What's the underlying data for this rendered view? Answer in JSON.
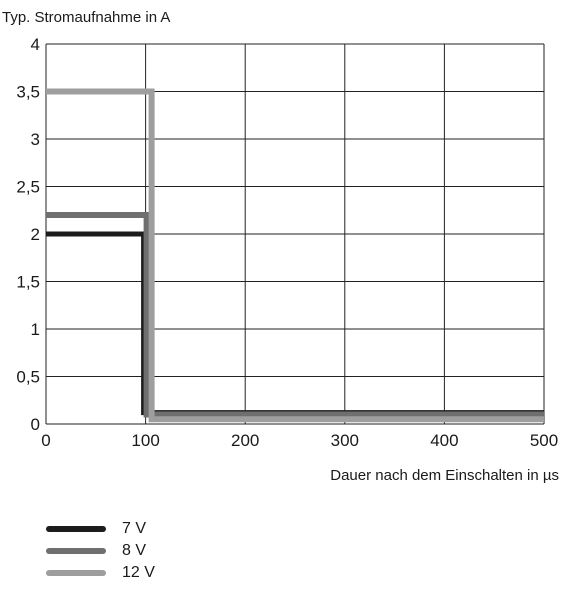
{
  "chart_data": {
    "type": "line",
    "ylabel": "Typ. Stromaufnahme in A",
    "xlabel": "Dauer nach dem Einschalten in µs",
    "xlim": [
      0,
      500
    ],
    "ylim": [
      0,
      4
    ],
    "x_ticks": [
      0,
      100,
      200,
      300,
      400,
      500
    ],
    "y_ticks": [
      0,
      0.5,
      1,
      1.5,
      2,
      2.5,
      3,
      3.5,
      4
    ],
    "x_tick_labels": [
      "0",
      "100",
      "200",
      "300",
      "400",
      "500"
    ],
    "y_tick_labels": [
      "0",
      "0,5",
      "1",
      "1,5",
      "2",
      "2,5",
      "3",
      "3,5",
      "4"
    ],
    "grid": true,
    "legend_position": "bottom-left",
    "series": [
      {
        "name": "7 V",
        "color": "#1c1c1c",
        "x": [
          0,
          98,
          98,
          500
        ],
        "y": [
          2.0,
          2.0,
          0.12,
          0.12
        ]
      },
      {
        "name": "8 V",
        "color": "#6f6f6f",
        "x": [
          0,
          101,
          101,
          500
        ],
        "y": [
          2.2,
          2.2,
          0.1,
          0.1
        ]
      },
      {
        "name": "12 V",
        "color": "#9e9e9e",
        "x": [
          0,
          106,
          106,
          500
        ],
        "y": [
          3.5,
          3.5,
          0.05,
          0.05
        ]
      }
    ]
  }
}
